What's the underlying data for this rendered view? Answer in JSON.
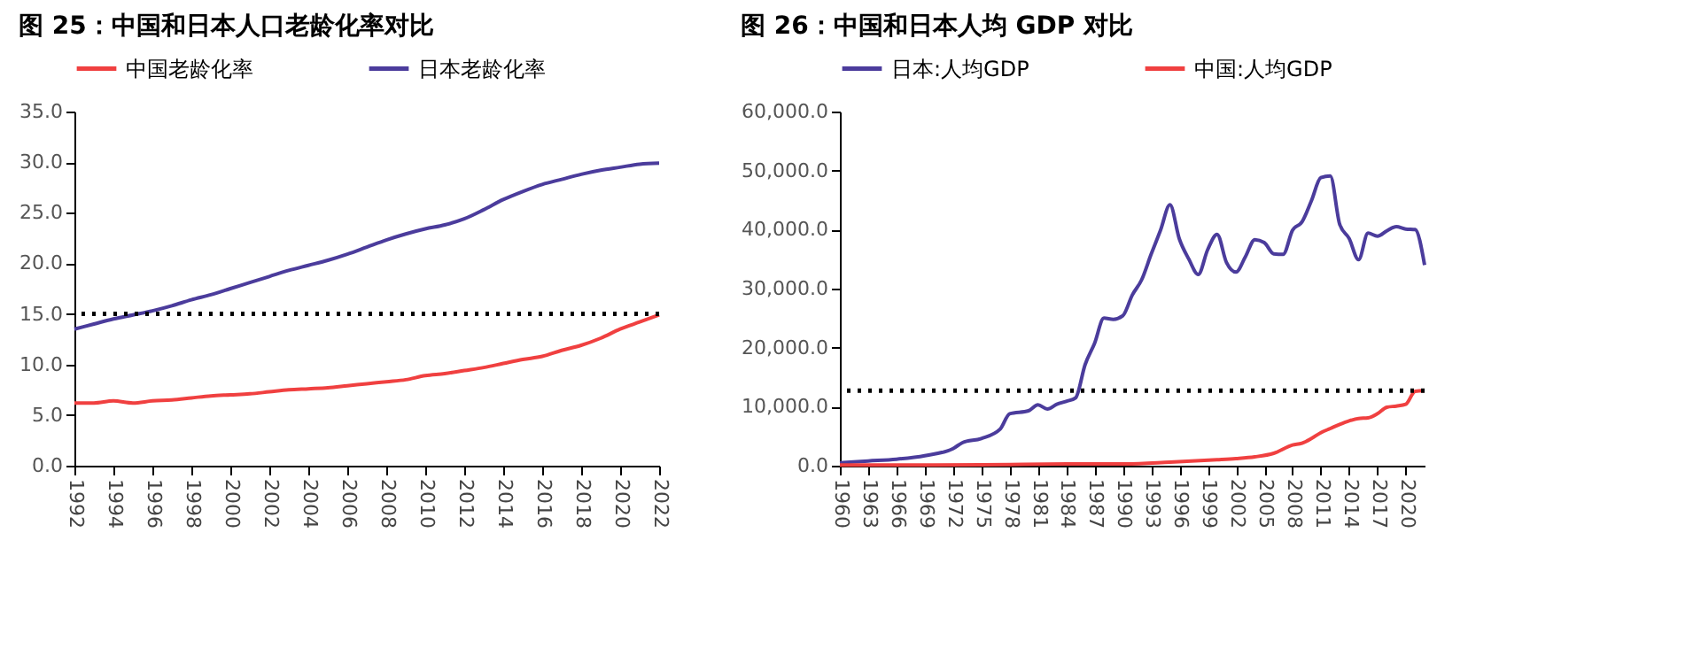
{
  "chart_data": [
    {
      "type": "line",
      "title": "图 25：中国和日本人口老龄化率对比",
      "x": [
        1992,
        1993,
        1994,
        1995,
        1996,
        1997,
        1998,
        1999,
        2000,
        2001,
        2002,
        2003,
        2004,
        2005,
        2006,
        2007,
        2008,
        2009,
        2010,
        2011,
        2012,
        2013,
        2014,
        2015,
        2016,
        2017,
        2018,
        2019,
        2020,
        2021,
        2022
      ],
      "series": [
        {
          "name": "中国老龄化率",
          "color": "#f04040",
          "values": [
            6.2,
            6.2,
            6.4,
            6.2,
            6.4,
            6.5,
            6.7,
            6.9,
            7.0,
            7.1,
            7.3,
            7.5,
            7.6,
            7.7,
            7.9,
            8.1,
            8.3,
            8.5,
            8.9,
            9.1,
            9.4,
            9.7,
            10.1,
            10.5,
            10.8,
            11.4,
            11.9,
            12.6,
            13.5,
            14.2,
            14.9
          ]
        },
        {
          "name": "日本老龄化率",
          "color": "#4b3c9c",
          "values": [
            13.5,
            14.0,
            14.5,
            14.9,
            15.3,
            15.8,
            16.4,
            16.9,
            17.5,
            18.1,
            18.7,
            19.3,
            19.8,
            20.3,
            20.9,
            21.6,
            22.3,
            22.9,
            23.4,
            23.8,
            24.4,
            25.3,
            26.3,
            27.1,
            27.8,
            28.3,
            28.8,
            29.2,
            29.5,
            29.8,
            29.9
          ]
        }
      ],
      "xlim": [
        1992,
        2022
      ],
      "xticks": [
        1992,
        1994,
        1996,
        1998,
        2000,
        2002,
        2004,
        2006,
        2008,
        2010,
        2012,
        2014,
        2016,
        2018,
        2020,
        2022
      ],
      "ylim": [
        0,
        35
      ],
      "yticks": [
        {
          "value": 0,
          "label": "0.0"
        },
        {
          "value": 5,
          "label": "5.0"
        },
        {
          "value": 10,
          "label": "10.0"
        },
        {
          "value": 15,
          "label": "15.0"
        },
        {
          "value": 20,
          "label": "20.0"
        },
        {
          "value": 25,
          "label": "25.0"
        },
        {
          "value": 30,
          "label": "30.0"
        },
        {
          "value": 35,
          "label": "35.0"
        }
      ],
      "ref_lines": [
        {
          "axis": "y",
          "value": 15,
          "color": "#000000",
          "line_style": "dotted"
        }
      ],
      "grid": false,
      "legend": "top",
      "marker": "none",
      "line_style": "solid"
    },
    {
      "type": "line",
      "title": "图 26：中国和日本人均 GDP 对比",
      "series": [
        {
          "name": "日本:人均GDP",
          "color": "#4b3c9c",
          "x": [
            1960,
            1963,
            1966,
            1969,
            1972,
            1973,
            1975,
            1977,
            1978,
            1980,
            1981,
            1982,
            1983,
            1984,
            1985,
            1986,
            1987,
            1988,
            1989,
            1990,
            1991,
            1992,
            1993,
            1994,
            1995,
            1996,
            1997,
            1998,
            1999,
            2000,
            2001,
            2002,
            2003,
            2004,
            2005,
            2006,
            2007,
            2008,
            2009,
            2010,
            2011,
            2012,
            2013,
            2014,
            2015,
            2016,
            2017,
            2018,
            2019,
            2020,
            2021,
            2022
          ],
          "values": [
            500,
            800,
            1100,
            1700,
            2900,
            3900,
            4600,
            6200,
            8800,
            9300,
            10300,
            9600,
            10400,
            10900,
            11500,
            17100,
            20700,
            25000,
            24800,
            25400,
            28900,
            31500,
            35800,
            39900,
            44200,
            38400,
            35000,
            32400,
            36600,
            39200,
            34400,
            32800,
            35400,
            38300,
            37800,
            35900,
            35800,
            39900,
            41300,
            44900,
            48800,
            49100,
            40900,
            38500,
            34900,
            39400,
            38900,
            39800,
            40500,
            40100,
            40000,
            34000
          ]
        },
        {
          "name": "中国:人均GDP",
          "color": "#f04040",
          "x": [
            1960,
            1970,
            1978,
            1985,
            1990,
            1995,
            2000,
            2002,
            2004,
            2006,
            2008,
            2009,
            2010,
            2011,
            2012,
            2013,
            2014,
            2015,
            2016,
            2017,
            2018,
            2019,
            2020,
            2021,
            2022
          ],
          "values": [
            100,
            100,
            200,
            300,
            300,
            600,
            1000,
            1200,
            1500,
            2100,
            3500,
            3800,
            4600,
            5600,
            6300,
            7000,
            7600,
            8000,
            8100,
            8800,
            9900,
            10100,
            10400,
            12600,
            12700
          ]
        }
      ],
      "xlim": [
        1960,
        2022
      ],
      "xticks": [
        1960,
        1963,
        1966,
        1969,
        1972,
        1975,
        1978,
        1981,
        1984,
        1987,
        1990,
        1993,
        1996,
        1999,
        2002,
        2005,
        2008,
        2011,
        2014,
        2017,
        2020
      ],
      "ylim": [
        0,
        60000
      ],
      "yticks": [
        {
          "value": 0,
          "label": "0.0"
        },
        {
          "value": 10000,
          "label": "10,000.0"
        },
        {
          "value": 20000,
          "label": "20,000.0"
        },
        {
          "value": 30000,
          "label": "30,000.0"
        },
        {
          "value": 40000,
          "label": "40,000.0"
        },
        {
          "value": 50000,
          "label": "50,000.0"
        },
        {
          "value": 60000,
          "label": "60,000.0"
        }
      ],
      "ref_lines": [
        {
          "axis": "y",
          "value": 12700,
          "color": "#000000",
          "line_style": "dotted"
        }
      ],
      "grid": false,
      "legend": "top",
      "marker": "none",
      "line_style": "solid"
    }
  ]
}
